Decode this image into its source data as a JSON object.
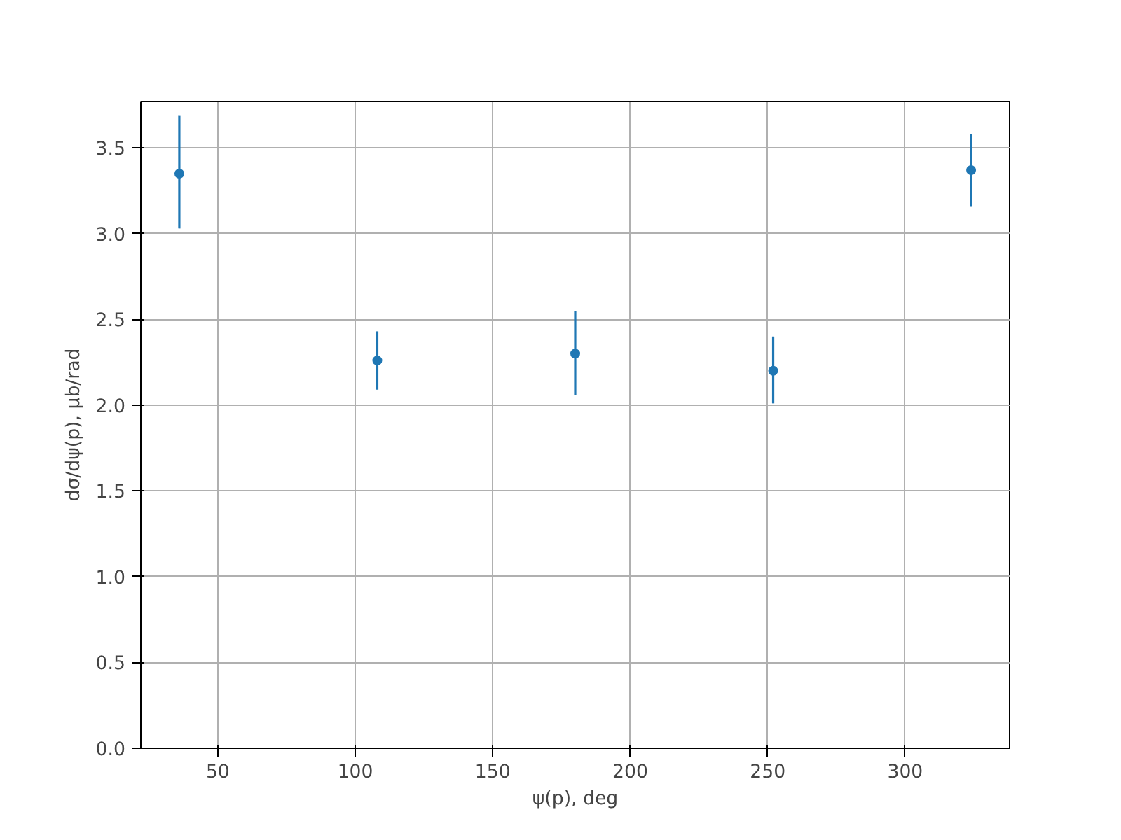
{
  "chart_data": {
    "type": "scatter",
    "xlabel": "ψ(p), deg",
    "ylabel": "dσ/dψ(p), μb/rad",
    "x": [
      36,
      108,
      180,
      252,
      324
    ],
    "series": [
      {
        "color": "#1f77b4",
        "values": [
          3.35,
          2.26,
          2.3,
          2.2,
          3.37
        ],
        "errors": [
          [
            3.03,
            3.69
          ],
          [
            2.09,
            2.43
          ],
          [
            2.06,
            2.55
          ],
          [
            2.01,
            2.4
          ],
          [
            3.16,
            3.58
          ]
        ]
      }
    ],
    "xlim": [
      22,
      338
    ],
    "ylim": [
      0,
      3.77
    ],
    "xticks": [
      50,
      100,
      150,
      200,
      250,
      300
    ],
    "yticks": [
      {
        "value": 0,
        "label": "0.0"
      },
      {
        "value": 0.5,
        "label": "0.5"
      },
      {
        "value": 1,
        "label": "1.0"
      },
      {
        "value": 1.5,
        "label": "1.5"
      },
      {
        "value": 2,
        "label": "2.0"
      },
      {
        "value": 2.5,
        "label": "2.5"
      },
      {
        "value": 3,
        "label": "3.0"
      },
      {
        "value": 3.5,
        "label": "3.5"
      }
    ],
    "grid": true,
    "marker": "circle"
  }
}
